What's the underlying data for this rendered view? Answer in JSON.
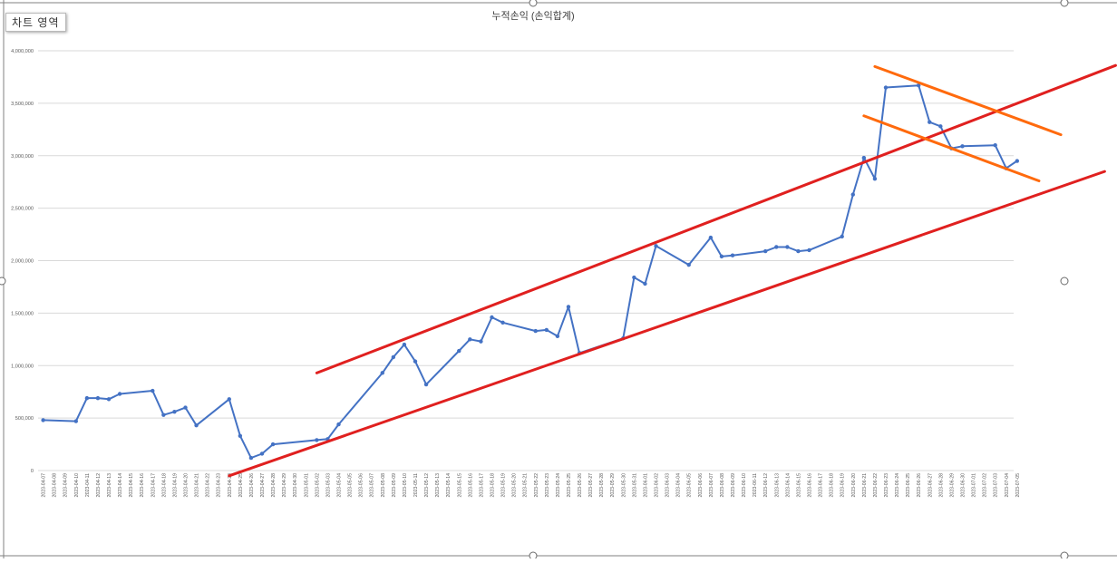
{
  "chart_area_label": "차트 영역",
  "colors": {
    "series": "#4472c4",
    "gridline": "#d9d9d9",
    "trend_red": "#e0201f",
    "trend_orange": "#ff6a0d",
    "frame": "#808080"
  },
  "chart_data": {
    "type": "line",
    "title": "누적손익 (손익합계)",
    "xlabel": "",
    "ylabel": "",
    "ylim": [
      0,
      4000000
    ],
    "yticks": [
      0,
      500000,
      1000000,
      1500000,
      2000000,
      2500000,
      3000000,
      3500000,
      4000000
    ],
    "ytick_labels": [
      "0",
      "500,000",
      "1,000,000",
      "1,500,000",
      "2,000,000",
      "2,500,000",
      "3,000,000",
      "3,500,000",
      "4,000,000"
    ],
    "grid": true,
    "legend": "none",
    "categories": [
      "2023-04-07",
      "2023-04-08",
      "2023-04-09",
      "2023-04-10",
      "2023-04-11",
      "2023-04-12",
      "2023-04-13",
      "2023-04-14",
      "2023-04-15",
      "2023-04-16",
      "2023-04-17",
      "2023-04-18",
      "2023-04-19",
      "2023-04-20",
      "2023-04-21",
      "2023-04-22",
      "2023-04-23",
      "2023-04-24",
      "2023-04-25",
      "2023-04-26",
      "2023-04-27",
      "2023-04-28",
      "2023-04-29",
      "2023-04-30",
      "2023-05-01",
      "2023-05-02",
      "2023-05-03",
      "2023-05-04",
      "2023-05-05",
      "2023-05-06",
      "2023-05-07",
      "2023-05-08",
      "2023-05-09",
      "2023-05-10",
      "2023-05-11",
      "2023-05-12",
      "2023-05-13",
      "2023-05-14",
      "2023-05-15",
      "2023-05-16",
      "2023-05-17",
      "2023-05-18",
      "2023-05-19",
      "2023-05-20",
      "2023-05-21",
      "2023-05-22",
      "2023-05-23",
      "2023-05-24",
      "2023-05-25",
      "2023-05-26",
      "2023-05-27",
      "2023-05-28",
      "2023-05-29",
      "2023-05-30",
      "2023-05-31",
      "2023-06-01",
      "2023-06-02",
      "2023-06-03",
      "2023-06-04",
      "2023-06-05",
      "2023-06-06",
      "2023-06-07",
      "2023-06-08",
      "2023-06-09",
      "2023-06-10",
      "2023-06-11",
      "2023-06-12",
      "2023-06-13",
      "2023-06-14",
      "2023-06-15",
      "2023-06-16",
      "2023-06-17",
      "2023-06-18",
      "2023-06-19",
      "2023-06-20",
      "2023-06-21",
      "2023-06-22",
      "2023-06-23",
      "2023-06-24",
      "2023-06-25",
      "2023-06-26",
      "2023-06-27",
      "2023-06-28",
      "2023-06-29",
      "2023-06-30",
      "2023-07-01",
      "2023-07-02",
      "2023-07-03",
      "2023-07-04",
      "2023-07-05"
    ],
    "series": [
      {
        "points": [
          [
            "2023-04-07",
            480000
          ],
          [
            "2023-04-10",
            470000
          ],
          [
            "2023-04-11",
            690000
          ],
          [
            "2023-04-12",
            690000
          ],
          [
            "2023-04-13",
            680000
          ],
          [
            "2023-04-14",
            730000
          ],
          [
            "2023-04-17",
            760000
          ],
          [
            "2023-04-18",
            530000
          ],
          [
            "2023-04-19",
            560000
          ],
          [
            "2023-04-20",
            600000
          ],
          [
            "2023-04-21",
            430000
          ],
          [
            "2023-04-24",
            680000
          ],
          [
            "2023-04-25",
            330000
          ],
          [
            "2023-04-26",
            120000
          ],
          [
            "2023-04-27",
            160000
          ],
          [
            "2023-04-28",
            250000
          ],
          [
            "2023-05-02",
            290000
          ],
          [
            "2023-05-03",
            300000
          ],
          [
            "2023-05-04",
            440000
          ],
          [
            "2023-05-08",
            930000
          ],
          [
            "2023-05-09",
            1080000
          ],
          [
            "2023-05-10",
            1200000
          ],
          [
            "2023-05-11",
            1040000
          ],
          [
            "2023-05-12",
            820000
          ],
          [
            "2023-05-15",
            1140000
          ],
          [
            "2023-05-16",
            1250000
          ],
          [
            "2023-05-17",
            1230000
          ],
          [
            "2023-05-18",
            1460000
          ],
          [
            "2023-05-19",
            1410000
          ],
          [
            "2023-05-22",
            1330000
          ],
          [
            "2023-05-23",
            1340000
          ],
          [
            "2023-05-24",
            1280000
          ],
          [
            "2023-05-25",
            1560000
          ],
          [
            "2023-05-26",
            1120000
          ],
          [
            "2023-05-30",
            1260000
          ],
          [
            "2023-05-31",
            1840000
          ],
          [
            "2023-06-01",
            1780000
          ],
          [
            "2023-06-02",
            2140000
          ],
          [
            "2023-06-05",
            1960000
          ],
          [
            "2023-06-07",
            2220000
          ],
          [
            "2023-06-08",
            2040000
          ],
          [
            "2023-06-09",
            2050000
          ],
          [
            "2023-06-12",
            2090000
          ],
          [
            "2023-06-13",
            2130000
          ],
          [
            "2023-06-14",
            2130000
          ],
          [
            "2023-06-15",
            2090000
          ],
          [
            "2023-06-16",
            2100000
          ],
          [
            "2023-06-19",
            2230000
          ],
          [
            "2023-06-20",
            2630000
          ],
          [
            "2023-06-21",
            2980000
          ],
          [
            "2023-06-22",
            2780000
          ],
          [
            "2023-06-23",
            3650000
          ],
          [
            "2023-06-26",
            3670000
          ],
          [
            "2023-06-27",
            3320000
          ],
          [
            "2023-06-28",
            3280000
          ],
          [
            "2023-06-29",
            3070000
          ],
          [
            "2023-06-30",
            3090000
          ],
          [
            "2023-07-03",
            3100000
          ],
          [
            "2023-07-04",
            2880000
          ],
          [
            "2023-07-05",
            2950000
          ]
        ]
      }
    ],
    "trendlines": [
      {
        "color": "red",
        "from": [
          "2023-05-02",
          930000
        ],
        "to": [
          "2023-07-14",
          3860000
        ]
      },
      {
        "color": "red",
        "from": [
          "2023-04-24",
          -50000
        ],
        "to": [
          "2023-07-13",
          2850000
        ]
      },
      {
        "color": "orange",
        "from": [
          "2023-06-22",
          3850000
        ],
        "to": [
          "2023-07-09",
          3200000
        ]
      },
      {
        "color": "orange",
        "from": [
          "2023-06-21",
          3380000
        ],
        "to": [
          "2023-07-07",
          2760000
        ]
      }
    ]
  }
}
